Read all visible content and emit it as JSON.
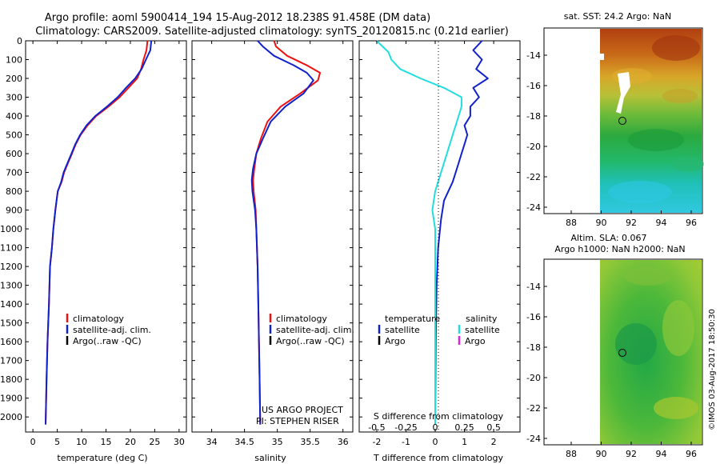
{
  "header": {
    "title_line1": "Argo profile: aoml 5900414_194 15-Aug-2012 18.238S 91.458E (DM data)",
    "title_line2": "Climatology: CARS2009. Satellite-adjusted climatology: synTS_20120815.nc (0.21d earlier)"
  },
  "colors": {
    "climatology": "#ee1111",
    "satellite": "#1122cc",
    "argo": "#000000",
    "satellite_s": "#22dddd",
    "argo_s": "#dd22dd"
  },
  "depth_axis": {
    "ticks": [
      0,
      100,
      200,
      300,
      400,
      500,
      600,
      700,
      800,
      900,
      1000,
      1100,
      1200,
      1300,
      1400,
      1500,
      1600,
      1700,
      1800,
      1900,
      2000
    ],
    "range": [
      0,
      2080
    ]
  },
  "chart_data": [
    {
      "type": "line",
      "name": "temperature",
      "xlabel": "temperature (deg C)",
      "ylabel": "depth",
      "xlim": [
        -1.5,
        31.5
      ],
      "xticks": [
        0,
        5,
        10,
        15,
        20,
        25,
        30
      ],
      "ylim": [
        0,
        2080
      ],
      "legend": [
        "climatology",
        "satellite-adj. clim.",
        "Argo(..raw -QC)"
      ],
      "series": [
        {
          "name": "climatology",
          "x": [
            23.5,
            23.3,
            22.7,
            22.2,
            21.4,
            19.6,
            17.8,
            15.5,
            13.0,
            11.2,
            9.8,
            8.8,
            8.0,
            7.2,
            6.4,
            5.9,
            5.1,
            4.6,
            4.2,
            3.9,
            3.5,
            3.3,
            3.0,
            2.8,
            2.6
          ],
          "y": [
            0,
            50,
            100,
            150,
            200,
            250,
            300,
            350,
            400,
            450,
            500,
            550,
            600,
            650,
            700,
            750,
            800,
            900,
            1000,
            1100,
            1200,
            1400,
            1600,
            1800,
            2040
          ]
        },
        {
          "name": "satellite-adj. clim.",
          "x": [
            24.3,
            24.1,
            23.2,
            22.3,
            21.0,
            19.1,
            17.4,
            15.2,
            12.8,
            11.0,
            9.7,
            8.7,
            7.9,
            7.1,
            6.3,
            5.8,
            5.1,
            4.6,
            4.2,
            3.9,
            3.5,
            3.3,
            3.0,
            2.8,
            2.6
          ],
          "y": [
            0,
            50,
            100,
            150,
            200,
            250,
            300,
            350,
            400,
            450,
            500,
            550,
            600,
            650,
            700,
            750,
            800,
            900,
            1000,
            1100,
            1200,
            1400,
            1600,
            1800,
            2040
          ]
        }
      ]
    },
    {
      "type": "line",
      "name": "salinity",
      "xlabel": "salinity",
      "xlim": [
        33.7,
        36.15
      ],
      "xticks": [
        34,
        34.5,
        35,
        35.5,
        36
      ],
      "ylim": [
        0,
        2080
      ],
      "legend": [
        "climatology",
        "satellite-adj. clim.",
        "Argo(..raw -QC)"
      ],
      "annotations": [
        "US ARGO PROJECT",
        "PI: STEPHEN RISER"
      ],
      "series": [
        {
          "name": "climatology",
          "x": [
            34.95,
            34.98,
            35.15,
            35.45,
            35.65,
            35.62,
            35.35,
            35.05,
            34.85,
            34.75,
            34.68,
            34.65,
            34.63,
            34.64,
            34.67,
            34.68,
            34.7,
            34.71,
            34.72,
            34.73,
            34.74
          ],
          "y": [
            0,
            30,
            80,
            130,
            170,
            210,
            280,
            350,
            430,
            520,
            600,
            680,
            740,
            800,
            900,
            1000,
            1200,
            1400,
            1600,
            1800,
            2040
          ]
        },
        {
          "name": "satellite-adj. clim.",
          "x": [
            34.7,
            34.78,
            34.95,
            35.25,
            35.45,
            35.55,
            35.4,
            35.12,
            34.9,
            34.78,
            34.68,
            34.63,
            34.61,
            34.62,
            34.66,
            34.68,
            34.7,
            34.71,
            34.72,
            34.73,
            34.74
          ],
          "y": [
            0,
            30,
            80,
            130,
            170,
            210,
            280,
            350,
            430,
            520,
            600,
            680,
            740,
            800,
            900,
            1000,
            1200,
            1400,
            1600,
            1800,
            2040
          ]
        }
      ]
    },
    {
      "type": "line",
      "name": "difference_from_climatology",
      "xlabel": "T difference from climatology",
      "xlabel_top": "S difference from climatology",
      "xlim": [
        -2.6,
        2.9
      ],
      "xticks": [
        -2,
        -1,
        0,
        1,
        2
      ],
      "xticks_s": [
        "-0.5",
        "-0.25",
        "0",
        "0.25",
        "0.5"
      ],
      "xticks_s_pos": [
        -2,
        -1,
        0,
        1,
        2
      ],
      "ylim": [
        0,
        2080
      ],
      "legend": {
        "temperature": "temperature",
        "salinity": "salinity",
        "satellite": "satellite",
        "argo": "Argo"
      },
      "series": [
        {
          "name": "temperature satellite",
          "x": [
            1.6,
            1.3,
            1.6,
            1.4,
            1.8,
            1.3,
            1.5,
            1.2,
            1.2,
            1.0,
            1.1,
            1.0,
            0.9,
            0.8,
            0.6,
            0.3,
            0.2,
            0.1,
            0.05,
            0.02,
            0.0
          ],
          "y": [
            0,
            50,
            100,
            150,
            200,
            250,
            300,
            350,
            400,
            450,
            500,
            550,
            600,
            650,
            750,
            850,
            950,
            1100,
            1300,
            1600,
            2040
          ]
        },
        {
          "name": "salinity satellite",
          "x": [
            -2.0,
            -1.6,
            -1.5,
            -1.2,
            -0.5,
            0.3,
            0.9,
            0.9,
            0.8,
            0.6,
            0.4,
            0.2,
            0.0,
            -0.1,
            0.0,
            0.0,
            0.0,
            0.0
          ],
          "y": [
            0,
            60,
            100,
            150,
            200,
            250,
            300,
            350,
            400,
            500,
            600,
            700,
            800,
            900,
            1000,
            1200,
            1600,
            2040
          ]
        }
      ]
    }
  ],
  "maps": {
    "top": {
      "title": "sat. SST: 24.2  Argo: NaN",
      "yticks": [
        "-14",
        "-16",
        "-18",
        "-20",
        "-22",
        "-24"
      ],
      "xticks": [
        "88",
        "90",
        "92",
        "94",
        "96"
      ]
    },
    "bottom": {
      "title_line1": "Altim. SLA: 0.067",
      "title_line2": "Argo h1000: NaN  h2000: NaN",
      "yticks": [
        "-14",
        "-16",
        "-18",
        "-20",
        "-22",
        "-24"
      ],
      "xticks": [
        "88",
        "90",
        "92",
        "94",
        "96"
      ]
    }
  },
  "credit": "©IMOS 03-Aug-2017 18:50:30"
}
